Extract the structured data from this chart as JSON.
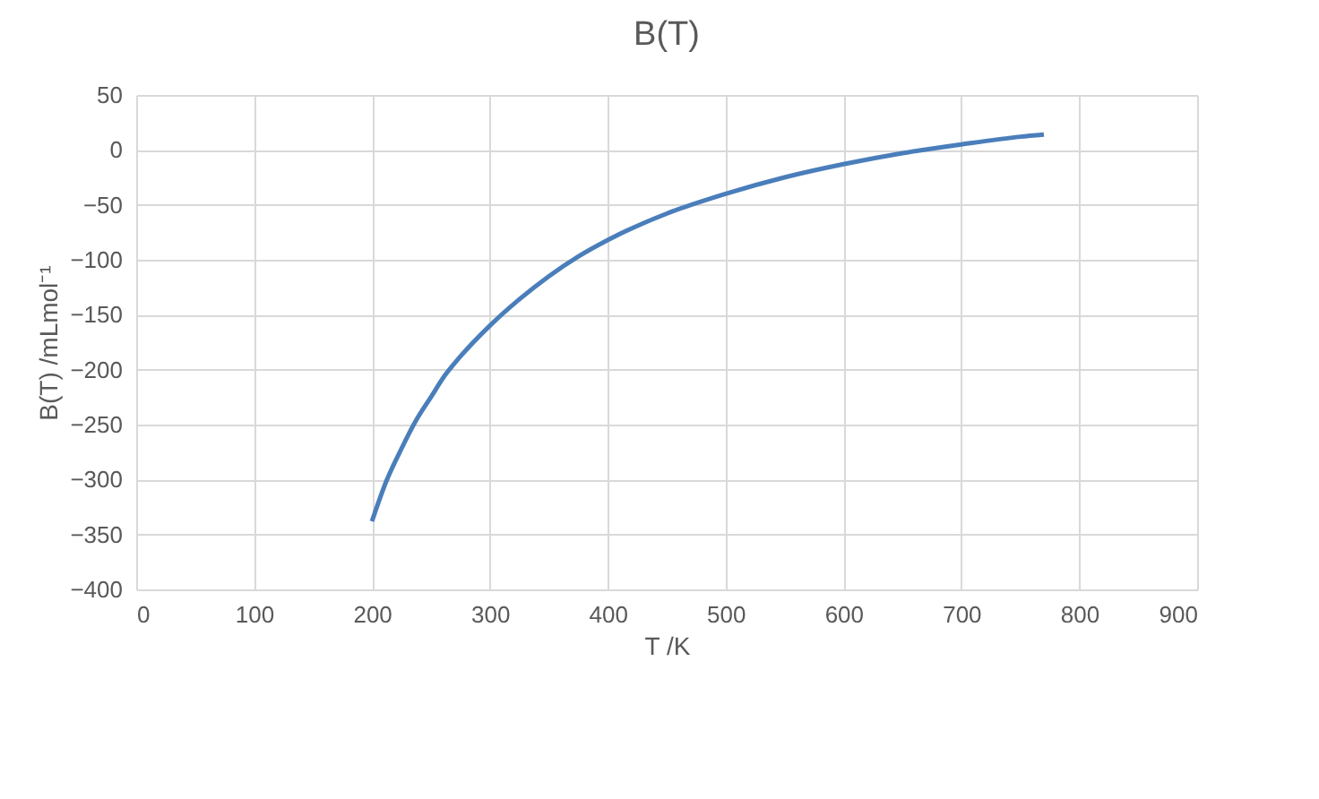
{
  "chart_data": {
    "type": "line",
    "title": "B(T)",
    "xlabel": "T /K",
    "ylabel": "B(T)  /mLmol⁻¹",
    "x": [
      200,
      212,
      225,
      237,
      250,
      262,
      275,
      300,
      325,
      350,
      375,
      400,
      450,
      500,
      550,
      600,
      650,
      700,
      750,
      770
    ],
    "series": [
      {
        "color": "#4a7ebb",
        "values": [
          -338,
          -302,
          -272,
          -247,
          -225,
          -205,
          -188,
          -160,
          -136,
          -115,
          -97,
          -82,
          -58,
          -40,
          -25,
          -13,
          -3,
          5,
          12,
          14
        ]
      }
    ],
    "xlim": [
      0,
      900
    ],
    "xticks": [
      0,
      100,
      200,
      300,
      400,
      500,
      600,
      700,
      800,
      900
    ],
    "ylim": [
      -400,
      50
    ],
    "yticks": [
      -400,
      -350,
      -300,
      -250,
      -200,
      -150,
      -100,
      -50,
      0,
      50
    ],
    "grid": true,
    "legend": false,
    "marker": "none",
    "line_style": "solid"
  }
}
